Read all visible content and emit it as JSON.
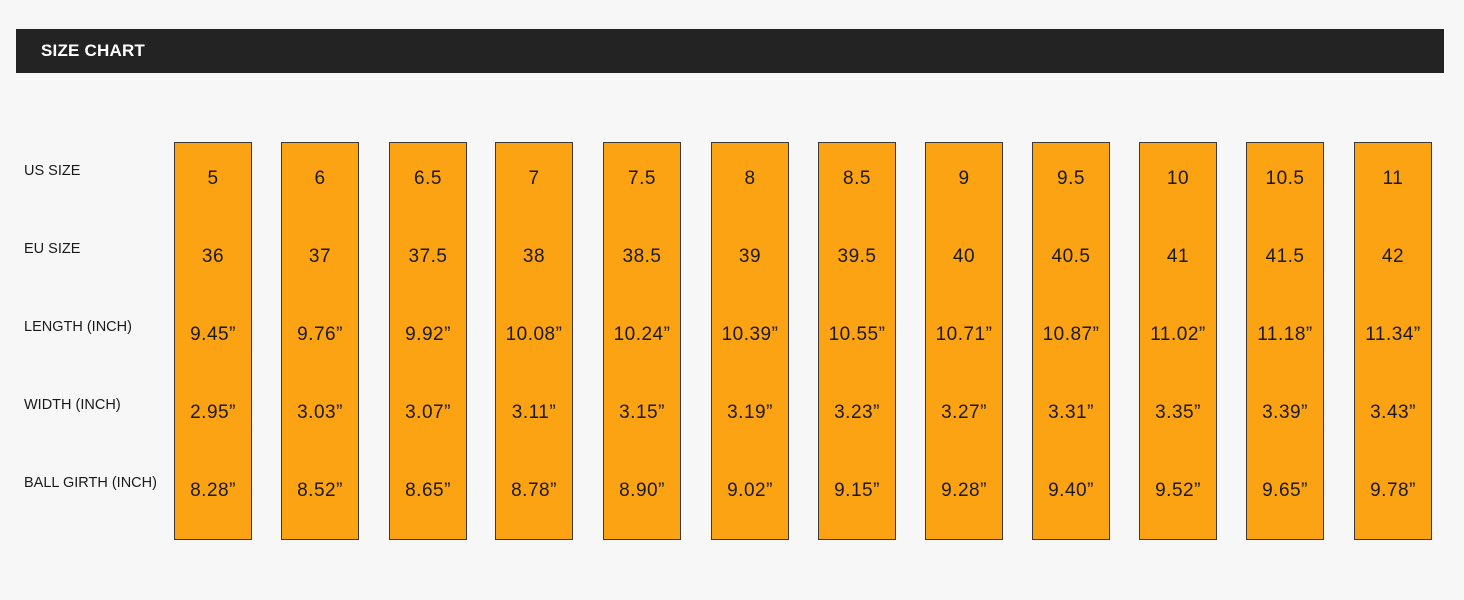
{
  "header": {
    "title": "SIZE CHART"
  },
  "colors": {
    "header_bg": "#232323",
    "column_fill": "#fca313",
    "page_bg": "#f7f7f7"
  },
  "row_labels": [
    "US SIZE",
    "EU SIZE",
    "LENGTH (INCH)",
    "WIDTH (INCH)",
    "BALL GIRTH (INCH)"
  ],
  "sizes": [
    {
      "us": "5",
      "eu": "36",
      "length": "9.45”",
      "width": "2.95”",
      "girth": "8.28”"
    },
    {
      "us": "6",
      "eu": "37",
      "length": "9.76”",
      "width": "3.03”",
      "girth": "8.52”"
    },
    {
      "us": "6.5",
      "eu": "37.5",
      "length": "9.92”",
      "width": "3.07”",
      "girth": "8.65”"
    },
    {
      "us": "7",
      "eu": "38",
      "length": "10.08”",
      "width": "3.11”",
      "girth": "8.78”"
    },
    {
      "us": "7.5",
      "eu": "38.5",
      "length": "10.24”",
      "width": "3.15”",
      "girth": "8.90”"
    },
    {
      "us": "8",
      "eu": "39",
      "length": "10.39”",
      "width": "3.19”",
      "girth": "9.02”"
    },
    {
      "us": "8.5",
      "eu": "39.5",
      "length": "10.55”",
      "width": "3.23”",
      "girth": "9.15”"
    },
    {
      "us": "9",
      "eu": "40",
      "length": "10.71”",
      "width": "3.27”",
      "girth": "9.28”"
    },
    {
      "us": "9.5",
      "eu": "40.5",
      "length": "10.87”",
      "width": "3.31”",
      "girth": "9.40”"
    },
    {
      "us": "10",
      "eu": "41",
      "length": "11.02”",
      "width": "3.35”",
      "girth": "9.52”"
    },
    {
      "us": "10.5",
      "eu": "41.5",
      "length": "11.18”",
      "width": "3.39”",
      "girth": "9.65”"
    },
    {
      "us": "11",
      "eu": "42",
      "length": "11.34”",
      "width": "3.43”",
      "girth": "9.78”"
    }
  ]
}
